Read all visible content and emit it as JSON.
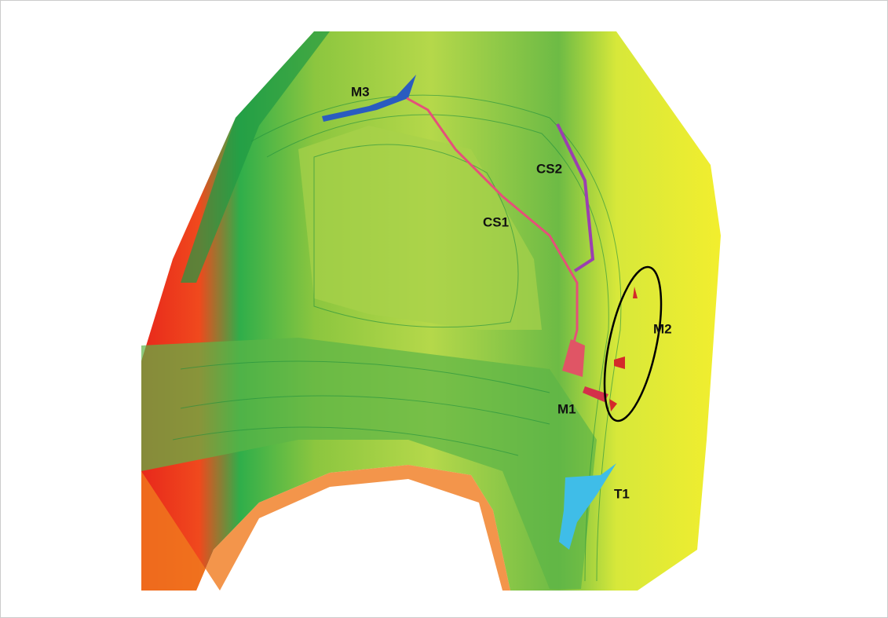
{
  "labels": [
    "M3",
    "CS2",
    "CS1",
    "M2",
    "M1",
    "T1"
  ]
}
